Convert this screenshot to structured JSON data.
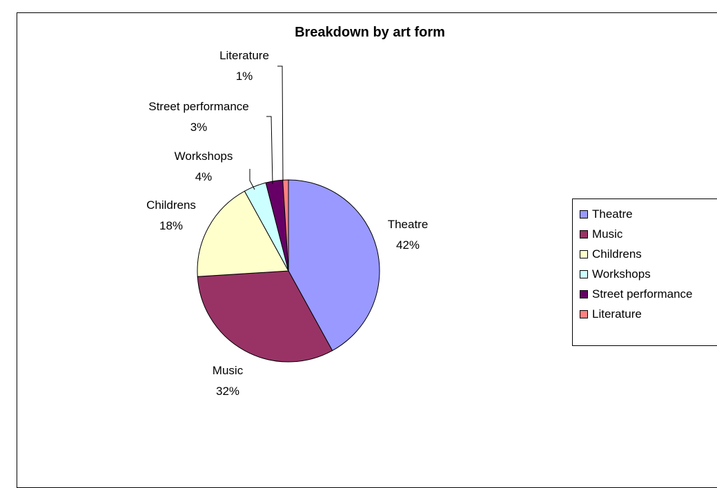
{
  "chart_data": {
    "type": "pie",
    "title": "Breakdown by art form",
    "categories": [
      "Theatre",
      "Music",
      "Childrens",
      "Workshops",
      "Street performance",
      "Literature"
    ],
    "values": [
      42,
      32,
      18,
      4,
      3,
      1
    ],
    "labels": [
      "42%",
      "32%",
      "18%",
      "4%",
      "3%",
      "1%"
    ],
    "colors": [
      "#9999FF",
      "#993366",
      "#FFFFCC",
      "#CCFFFF",
      "#660066",
      "#FF8080"
    ],
    "legend_position": "right"
  }
}
